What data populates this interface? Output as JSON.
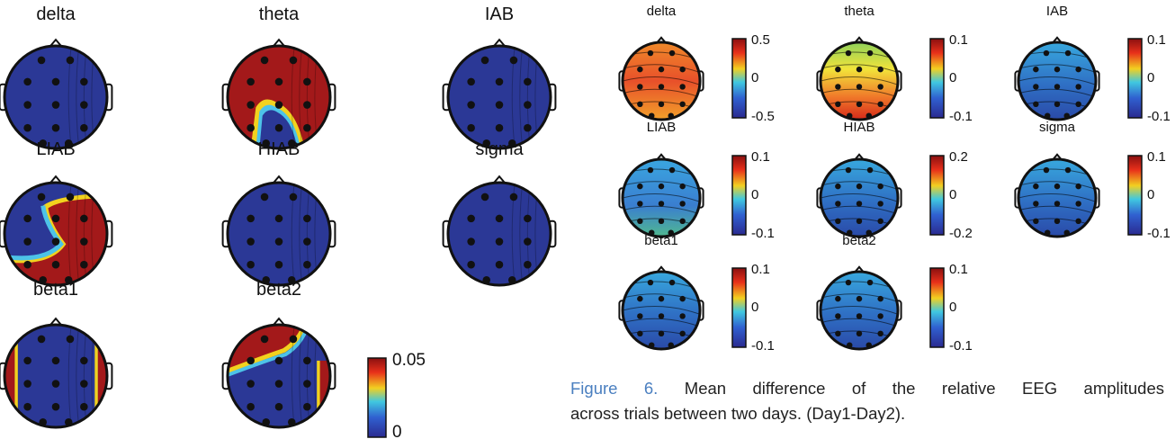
{
  "left_panel": {
    "maps": [
      {
        "title": "delta",
        "fill": "blue",
        "extra": "none"
      },
      {
        "title": "theta",
        "fill": "red",
        "extra": "bottom-blob"
      },
      {
        "title": "IAB",
        "fill": "blue",
        "extra": "right-edge"
      },
      {
        "title": "LIAB",
        "fill": "blue",
        "extra": "s-shape"
      },
      {
        "title": "HIAB",
        "fill": "blue",
        "extra": "top-dip"
      },
      {
        "title": "sigma",
        "fill": "blue",
        "extra": "none"
      },
      {
        "title": "beta1",
        "fill": "blue",
        "extra": "side-bands"
      },
      {
        "title": "beta2",
        "fill": "blue",
        "extra": "top-arc"
      }
    ],
    "colorbar": {
      "max_label": "0.05",
      "min_label": "0"
    }
  },
  "right_panel": {
    "maps": [
      {
        "title": "delta",
        "scale_top": "0.5",
        "scale_mid": "0",
        "scale_bot": "-0.5",
        "fill": "warm"
      },
      {
        "title": "theta",
        "scale_top": "0.1",
        "scale_mid": "0",
        "scale_bot": "-0.1",
        "fill": "yellow-red"
      },
      {
        "title": "IAB",
        "scale_top": "0.1",
        "scale_mid": "0",
        "scale_bot": "-0.1",
        "fill": "cool"
      },
      {
        "title": "LIAB",
        "scale_top": "0.1",
        "scale_mid": "0",
        "scale_bot": "-0.1",
        "fill": "cool-green"
      },
      {
        "title": "HIAB",
        "scale_top": "0.2",
        "scale_mid": "0",
        "scale_bot": "-0.2",
        "fill": "cool"
      },
      {
        "title": "sigma",
        "scale_top": "0.1",
        "scale_mid": "0",
        "scale_bot": "-0.1",
        "fill": "cool"
      },
      {
        "title": "beta1",
        "scale_top": "0.1",
        "scale_mid": "0",
        "scale_bot": "-0.1",
        "fill": "cool"
      },
      {
        "title": "beta2",
        "scale_top": "0.1",
        "scale_mid": "0",
        "scale_bot": "-0.1",
        "fill": "cool"
      }
    ]
  },
  "caption": {
    "label": "Figure 6.",
    "line1_rest": "Mean difference of the relative EEG amplitudes",
    "line2": "across trials between two days. (Day1-Day2)."
  },
  "colors": {
    "deep_blue": "#2a3a9a",
    "dark_red": "#a01818",
    "caption_label": "#4a7fc0"
  }
}
